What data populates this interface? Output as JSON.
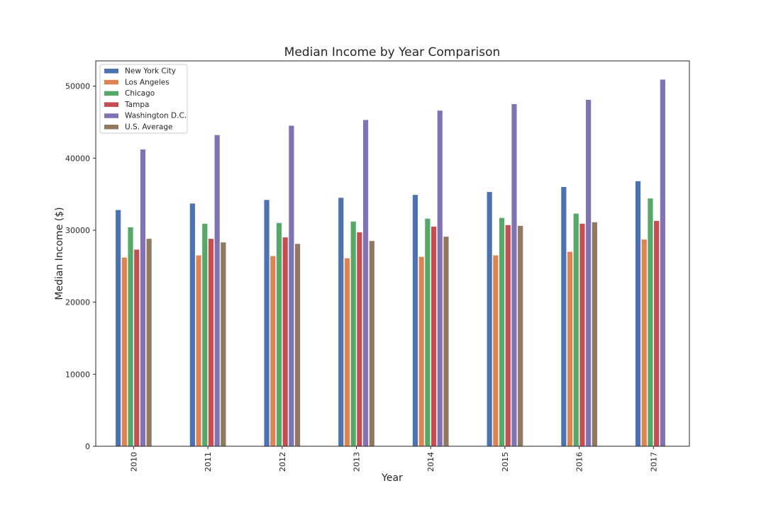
{
  "chart_data": {
    "type": "bar",
    "title": "Median Income by Year Comparison",
    "xlabel": "Year",
    "ylabel": "Median Income ($)",
    "categories": [
      "2010",
      "2011",
      "2012",
      "2013",
      "2014",
      "2015",
      "2016",
      "2017"
    ],
    "ylim": [
      0,
      53500
    ],
    "yticks": [
      0,
      10000,
      20000,
      30000,
      40000,
      50000
    ],
    "ytick_labels": [
      "0",
      "10000",
      "20000",
      "30000",
      "40000",
      "50000"
    ],
    "grid": false,
    "legend_position": "top-left",
    "xtick_rotation": "vertical",
    "series": [
      {
        "name": "New York City",
        "color": "#4c72b0",
        "values": [
          32800,
          33700,
          34200,
          34500,
          34900,
          35300,
          36000,
          36800
        ]
      },
      {
        "name": "Los Angeles",
        "color": "#dd8452",
        "values": [
          26200,
          26500,
          26400,
          26100,
          26300,
          26500,
          27000,
          28700
        ]
      },
      {
        "name": "Chicago",
        "color": "#55a868",
        "values": [
          30400,
          30900,
          31000,
          31200,
          31600,
          31700,
          32300,
          34400
        ]
      },
      {
        "name": "Tampa",
        "color": "#c44e52",
        "values": [
          27300,
          28800,
          29000,
          29700,
          30500,
          30700,
          30900,
          31300
        ]
      },
      {
        "name": "Washington D.C.",
        "color": "#8172b3",
        "values": [
          41200,
          43200,
          44500,
          45300,
          46600,
          47500,
          48100,
          50900
        ]
      },
      {
        "name": "U.S. Average",
        "color": "#937860",
        "values": [
          28800,
          28300,
          28100,
          28500,
          29100,
          30600,
          31100,
          0
        ]
      }
    ]
  }
}
